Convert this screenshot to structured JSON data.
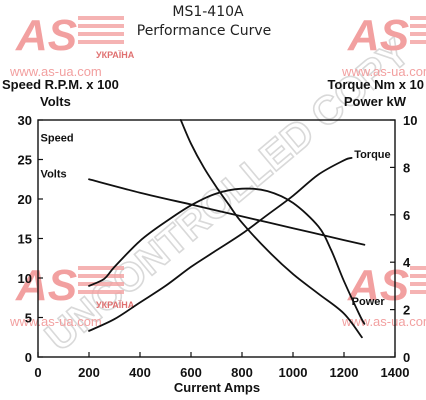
{
  "chart_data": {
    "type": "line",
    "title": "MS1-410A",
    "subtitle": "Performance Curve",
    "xlabel": "Current Amps",
    "xlim": [
      0,
      1400
    ],
    "x_ticks": [
      "0",
      "200",
      "400",
      "600",
      "800",
      "1000",
      "1200",
      "1400"
    ],
    "left_axis": {
      "label_top": "Speed R.P.M. x 100",
      "label_second": "Volts",
      "ylim": [
        0,
        30
      ],
      "ticks": [
        "0",
        "5",
        "10",
        "15",
        "20",
        "25",
        "30"
      ]
    },
    "right_axis": {
      "label_top": "Torque Nm x 10",
      "label_second": "Power kW",
      "ylim": [
        0,
        10
      ],
      "ticks": [
        "0",
        "2",
        "4",
        "6",
        "8",
        "10"
      ]
    },
    "grid": false,
    "series": [
      {
        "name": "Speed",
        "axis": "left",
        "label_at": [
          10,
          27.3
        ],
        "x": [
          560,
          600,
          650,
          700,
          750,
          800,
          900,
          1000,
          1100,
          1200,
          1270
        ],
        "y": [
          30,
          27,
          24,
          21.5,
          19.2,
          17,
          13.5,
          10.5,
          8,
          5.5,
          2.5
        ]
      },
      {
        "name": "Volts",
        "axis": "left",
        "label_at": [
          10,
          22.7
        ],
        "x": [
          200,
          400,
          600,
          800,
          1000,
          1200,
          1280
        ],
        "y": [
          22.5,
          20.8,
          19.3,
          17.8,
          16.3,
          14.8,
          14.2
        ]
      },
      {
        "name": "Torque",
        "axis": "right",
        "label_at": [
          1240,
          8.4
        ],
        "x": [
          200,
          300,
          400,
          500,
          600,
          700,
          800,
          900,
          1000,
          1100,
          1200,
          1230
        ],
        "y": [
          1.1,
          1.6,
          2.3,
          3.0,
          3.8,
          4.5,
          5.2,
          6.0,
          6.8,
          7.7,
          8.3,
          8.4
        ]
      },
      {
        "name": "Power",
        "axis": "right",
        "label_at": [
          1230,
          2.2
        ],
        "x": [
          200,
          260,
          300,
          400,
          500,
          600,
          700,
          800,
          900,
          1000,
          1100,
          1150,
          1200,
          1260,
          1280
        ],
        "y": [
          3.0,
          3.3,
          3.8,
          4.9,
          5.7,
          6.4,
          6.9,
          7.1,
          7.0,
          6.5,
          5.5,
          4.5,
          3.2,
          1.8,
          1.4
        ]
      }
    ]
  },
  "watermark": {
    "diagonal": "UNCONTROLLED COPY",
    "logo_text": "AS",
    "tag": "УКРАЇНА",
    "url": "www.as-ua.com",
    "color": "#f2a0a0"
  }
}
